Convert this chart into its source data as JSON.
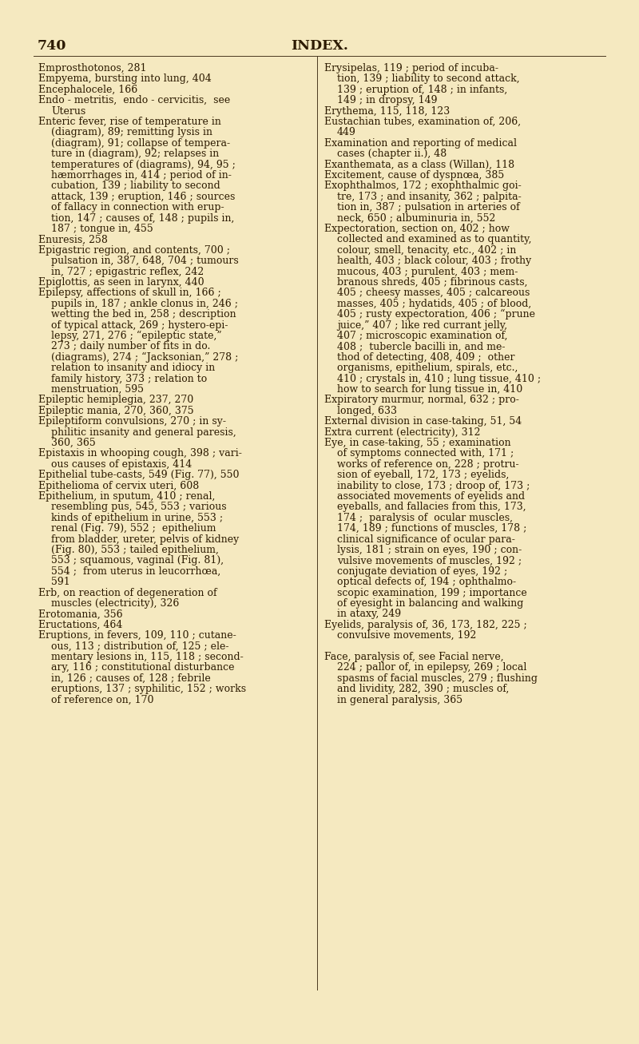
{
  "page_number": "740",
  "header": "INDEX.",
  "background_color": "#f5e9c0",
  "text_color": "#2c1a00",
  "divider_color": "#4a3820",
  "figsize": [
    8.0,
    13.07
  ],
  "dpi": 100,
  "left_column": [
    {
      "first": "Emprosthotonos, 281",
      "cont": []
    },
    {
      "first": "Empyema, bursting into lung, 404",
      "cont": []
    },
    {
      "first": "Encephalocele, 166",
      "cont": []
    },
    {
      "first": "Endo - metritis,  endo - cervicitis,  see",
      "cont": [
        "Uterus"
      ]
    },
    {
      "first": "Enteric fever, rise of temperature in",
      "cont": [
        "(diagram), 89; remitting lysis in",
        "(diagram), 91; collapse of tempera-",
        "ture in (diagram), 92; relapses in",
        "temperatures of (diagrams), 94, 95 ;",
        "hæmorrhages in, 414 ; period of in-",
        "cubation, 139 ; liability to second",
        "attack, 139 ; eruption, 146 ; sources",
        "of fallacy in connection with erup-",
        "tion, 147 ; causes of, 148 ; pupils in,",
        "187 ; tongue in, 455"
      ]
    },
    {
      "first": "Enuresis, 258",
      "cont": []
    },
    {
      "first": "Epigastric region, and contents, 700 ;",
      "cont": [
        "pulsation in, 387, 648, 704 ; tumours",
        "in, 727 ; epigastric reflex, 242"
      ]
    },
    {
      "first": "Epiglottis, as seen in larynx, 440",
      "cont": []
    },
    {
      "first": "Epilepsy, affections of skull in, 166 ;",
      "cont": [
        "pupils in, 187 ; ankle clonus in, 246 ;",
        "wetting the bed in, 258 ; description",
        "of typical attack, 269 ; hystero-epi-",
        "lepsy, 271, 276 ; “epileptic state,”",
        "273 ; daily number of fits in do.",
        "(diagrams), 274 ; “Jacksonian,” 278 ;",
        "relation to insanity and idiocy in",
        "family history, 373 ; relation to",
        "menstruation, 595"
      ]
    },
    {
      "first": "Epileptic hemiplegia, 237, 270",
      "cont": []
    },
    {
      "first": "Epileptic mania, 270, 360, 375",
      "cont": []
    },
    {
      "first": "Epileptiform convulsions, 270 ; in sy-",
      "cont": [
        "philitic insanity and general paresis,",
        "360, 365"
      ]
    },
    {
      "first": "Epistaxis in whooping cough, 398 ; vari-",
      "cont": [
        "ous causes of epistaxis, 414"
      ]
    },
    {
      "first": "Epithelial tube-casts, 549 (Fig. 77), 550",
      "cont": []
    },
    {
      "first": "Epithelioma of cervix uteri, 608",
      "cont": []
    },
    {
      "first": "Epithelium, in sputum, 410 ; renal,",
      "cont": [
        "resembling pus, 545, 553 ; various",
        "kinds of epithelium in urine, 553 ;",
        "renal (Fig. 79), 552 ;  epithelium",
        "from bladder, ureter, pelvis of kidney",
        "(Fig. 80), 553 ; tailed epithelium,",
        "553 ; squamous, vaginal (Fig. 81),",
        "554 ;  from uterus in leucorrhœa,",
        "591"
      ]
    },
    {
      "first": "Erb, on reaction of degeneration of",
      "cont": [
        "muscles (electricity), 326"
      ]
    },
    {
      "first": "Erotomania, 356",
      "cont": []
    },
    {
      "first": "Eructations, 464",
      "cont": []
    },
    {
      "first": "Eruptions, in fevers, 109, 110 ; cutane-",
      "cont": [
        "ous, 113 ; distribution of, 125 ; ele-",
        "mentary lesions in, 115, 118 ; second-",
        "ary, 116 ; constitutional disturbance",
        "in, 126 ; causes of, 128 ; febrile",
        "eruptions, 137 ; syphilitic, 152 ; works",
        "of reference on, 170"
      ]
    }
  ],
  "right_column": [
    {
      "first": "Erysipelas, 119 ; period of incuba-",
      "cont": [
        "tion, 139 ; liability to second attack,",
        "139 ; eruption of, 148 ; in infants,",
        "149 ; in dropsy, 149"
      ]
    },
    {
      "first": "Erythema, 115, 118, 123",
      "cont": []
    },
    {
      "first": "Eustachian tubes, examination of, 206,",
      "cont": [
        "449"
      ]
    },
    {
      "first": "Examination and reporting of medical",
      "cont": [
        "cases (chapter ii.), 48"
      ]
    },
    {
      "first": "Exanthemata, as a class (Willan), 118",
      "cont": []
    },
    {
      "first": "Excitement, cause of dyspnœa, 385",
      "cont": []
    },
    {
      "first": "Exophthalmos, 172 ; exophthalmic goi-",
      "cont": [
        "tre, 173 ; and insanity, 362 ; palpita-",
        "tion in, 387 ; pulsation in arteries of",
        "neck, 650 ; albuminuria in, 552"
      ]
    },
    {
      "first": "Expectoration, section on, 402 ; how",
      "cont": [
        "collected and examined as to quantity,",
        "colour, smell, tenacity, etc., 402 ; in",
        "health, 403 ; black colour, 403 ; frothy",
        "mucous, 403 ; purulent, 403 ; mem-",
        "branous shreds, 405 ; fibrinous casts,",
        "405 ; cheesy masses, 405 ; calcareous",
        "masses, 405 ; hydatids, 405 ; of blood,",
        "405 ; rusty expectoration, 406 ; “prune",
        "juice,” 407 ; like red currant jelly,",
        "407 ; microscopic examination of,",
        "408 ;  tubercle bacilli in, and me-",
        "thod of detecting, 408, 409 ;  other",
        "organisms, epithelium, spirals, etc.,",
        "410 ; crystals in, 410 ; lung tissue, 410 ;",
        "how to search for lung tissue in, 410"
      ]
    },
    {
      "first": "Expiratory murmur, normal, 632 ; pro-",
      "cont": [
        "longed, 633"
      ]
    },
    {
      "first": "External division in case-taking, 51, 54",
      "cont": []
    },
    {
      "first": "Extra current (electricity), 312",
      "cont": []
    },
    {
      "first": "Eye, in case-taking, 55 ; examination",
      "cont": [
        "of symptoms connected with, 171 ;",
        "works of reference on, 228 ; protru-",
        "sion of eyeball, 172, 173 ; eyelids,",
        "inability to close, 173 ; droop of, 173 ;",
        "associated movements of eyelids and",
        "eyeballs, and fallacies from this, 173,",
        "174 ;  paralysis of  ocular muscles,",
        "174, 189 ; functions of muscles, 178 ;",
        "clinical significance of ocular para-",
        "lysis, 181 ; strain on eyes, 190 ; con-",
        "vulsive movements of muscles, 192 ;",
        "conjugate deviation of eyes, 192 ;",
        "optical defects of, 194 ; ophthalmo-",
        "scopic examination, 199 ; importance",
        "of eyesight in balancing and walking",
        "in ataxy, 249"
      ]
    },
    {
      "first": "Eyelids, paralysis of, 36, 173, 182, 225 ;",
      "cont": [
        "convulsive movements, 192"
      ]
    },
    {
      "first": "",
      "cont": []
    },
    {
      "first": "Face, paralysis of, see Facial nerve,",
      "cont": [
        "224 ; pallor of, in epilepsy, 269 ; local",
        "spasms of facial muscles, 279 ; flushing",
        "and lividity, 282, 390 ; muscles of,",
        "in general paralysis, 365"
      ]
    }
  ]
}
